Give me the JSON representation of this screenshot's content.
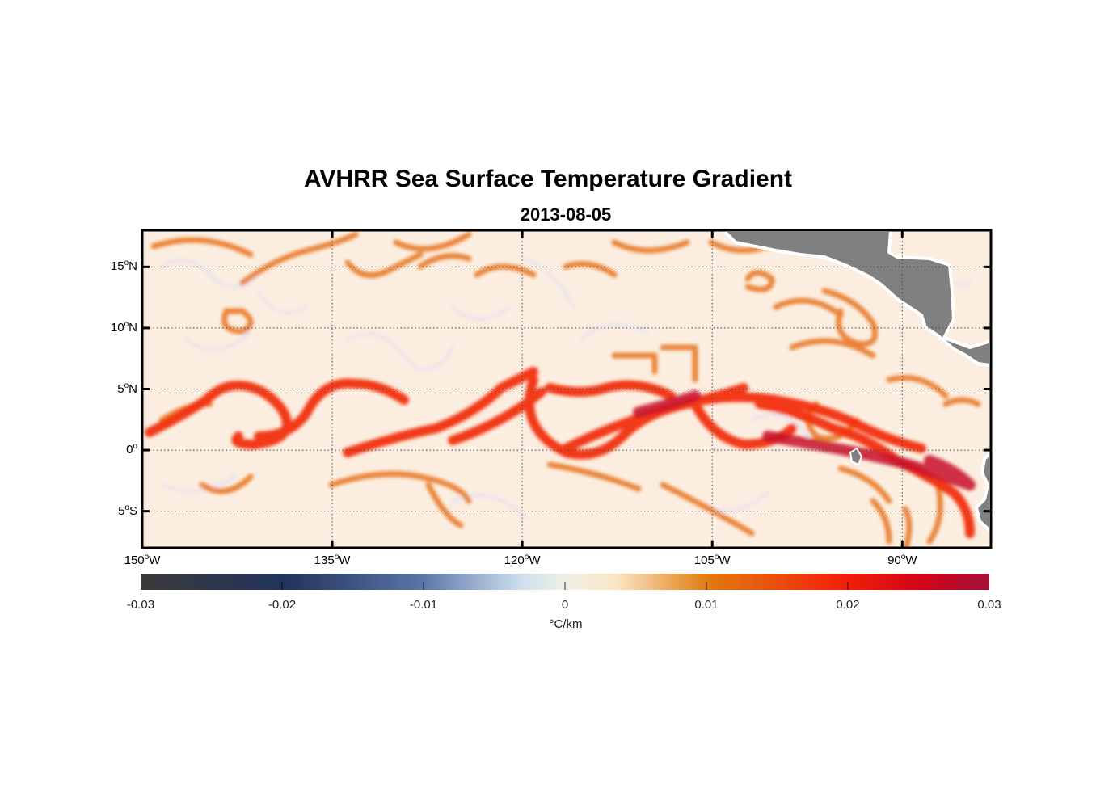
{
  "title": "AVHRR Sea Surface Temperature Gradient",
  "subtitle": "2013-08-05",
  "map": {
    "lon_range": [
      -150,
      -83
    ],
    "lat_range": [
      -8,
      18
    ],
    "lat_ticks": [
      {
        "value": 15,
        "num": "15",
        "hemi": "N"
      },
      {
        "value": 10,
        "num": "10",
        "hemi": "N"
      },
      {
        "value": 5,
        "num": "5",
        "hemi": "N"
      },
      {
        "value": 0,
        "num": "0",
        "hemi": ""
      },
      {
        "value": -5,
        "num": "5",
        "hemi": "S"
      }
    ],
    "lon_ticks": [
      {
        "value": -150,
        "num": "150",
        "hemi": "W"
      },
      {
        "value": -135,
        "num": "135",
        "hemi": "W"
      },
      {
        "value": -120,
        "num": "120",
        "hemi": "W"
      },
      {
        "value": -105,
        "num": "105",
        "hemi": "W"
      },
      {
        "value": -90,
        "num": "90",
        "hemi": "W"
      }
    ],
    "land_color": "#808080",
    "grid": "dotted"
  },
  "colorbar": {
    "range": [
      -0.03,
      0.03
    ],
    "tick_labels": [
      "-0.03",
      "-0.02",
      "-0.01",
      "0",
      "0.01",
      "0.02",
      "0.03"
    ],
    "unit": "°C/km",
    "colors": [
      "#3a3a3a",
      "#22335c",
      "#5a74a8",
      "#dfe8f0",
      "#fbe7c6",
      "#e07a10",
      "#f0200a",
      "#d0051a",
      "#a31238"
    ]
  }
}
